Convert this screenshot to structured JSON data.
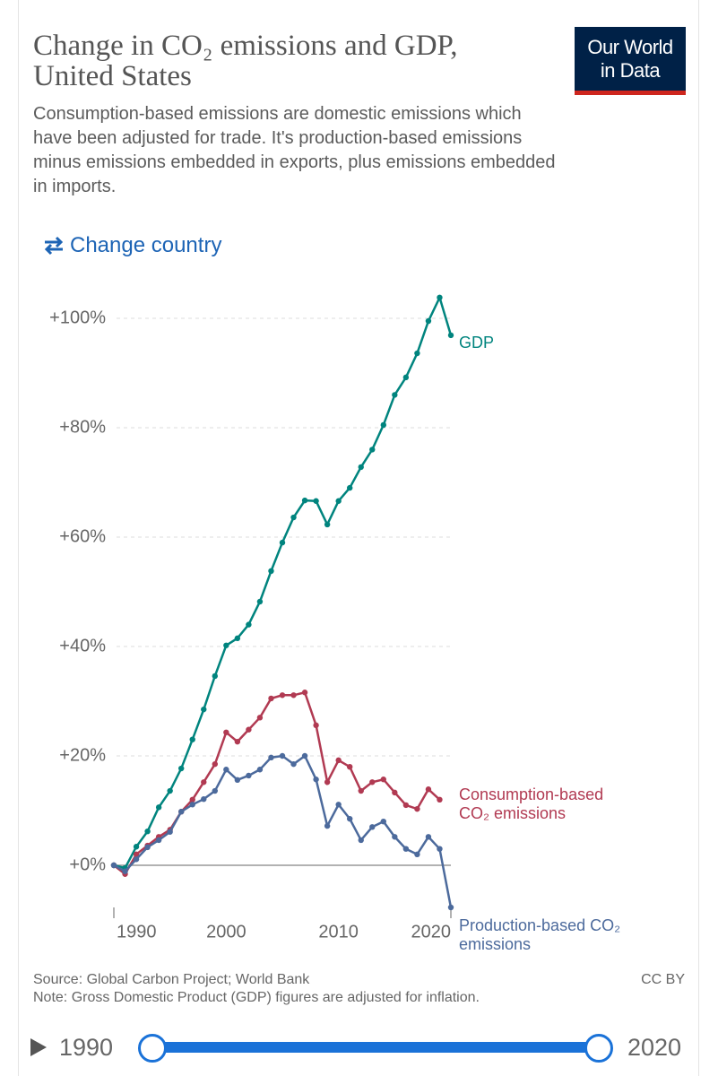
{
  "header": {
    "title": "Change in CO₂ emissions and GDP, United States",
    "subtitle": "Consumption-based emissions are domestic emissions which have been adjusted for trade. It's production-based emissions minus emissions embedded in exports, plus emissions embedded in imports.",
    "logo": [
      "Our World",
      "in Data"
    ],
    "change_country": "Change country"
  },
  "chart_data": {
    "type": "line",
    "x": [
      1990,
      1991,
      1992,
      1993,
      1994,
      1995,
      1996,
      1997,
      1998,
      1999,
      2000,
      2001,
      2002,
      2003,
      2004,
      2005,
      2006,
      2007,
      2008,
      2009,
      2010,
      2011,
      2012,
      2013,
      2014,
      2015,
      2016,
      2017,
      2018,
      2019,
      2020
    ],
    "series": [
      {
        "name": "GDP",
        "color": "#00847e",
        "values": [
          0,
          -0.5,
          3.4,
          6.2,
          10.6,
          13.6,
          17.7,
          23,
          28.5,
          34.6,
          40.2,
          41.5,
          44,
          48.2,
          53.8,
          59,
          63.6,
          66.7,
          66.6,
          62.3,
          66.6,
          69,
          72.8,
          76,
          80.5,
          86,
          89.2,
          93.6,
          99.5,
          103.8,
          96.9
        ]
      },
      {
        "name": "Consumption-based CO₂ emissions",
        "color": "#b13a52",
        "values": [
          0,
          -1.6,
          2,
          3.6,
          5.2,
          6.5,
          9.8,
          12,
          15.2,
          18.5,
          24.3,
          22.6,
          24.8,
          27,
          30.5,
          31.1,
          31.1,
          31.6,
          25.6,
          15.2,
          19.2,
          18,
          13.6,
          15.2,
          15.7,
          13.3,
          11,
          10.3,
          13.9,
          12,
          null
        ]
      },
      {
        "name": "Production-based CO₂ emissions",
        "color": "#4c6a9c",
        "values": [
          0,
          -1.1,
          1.1,
          3.3,
          4.6,
          6.1,
          9.8,
          11.1,
          12.1,
          13.6,
          17.5,
          15.6,
          16.4,
          17.5,
          19.7,
          20,
          18.5,
          20,
          15.7,
          7.2,
          11.1,
          8.5,
          4.6,
          7,
          8,
          5.2,
          3,
          2,
          5.2,
          3,
          -7.7
        ]
      }
    ],
    "xlim": [
      1990,
      2020
    ],
    "xticks": [
      1990,
      2000,
      2010,
      2020
    ],
    "ylim": [
      -8,
      104
    ],
    "yticks": [
      {
        "value": 0,
        "label": "+0%"
      },
      {
        "value": 20,
        "label": "+20%"
      },
      {
        "value": 40,
        "label": "+40%"
      },
      {
        "value": 60,
        "label": "+60%"
      },
      {
        "value": 80,
        "label": "+80%"
      },
      {
        "value": 100,
        "label": "+100%"
      }
    ],
    "grid": true
  },
  "footer": {
    "source": "Source: Global Carbon Project; World Bank",
    "note": "Note: Gross Domestic Product (GDP) figures are adjusted for inflation.",
    "license": "CC BY"
  },
  "timeline": {
    "start": "1990",
    "end": "2020"
  }
}
